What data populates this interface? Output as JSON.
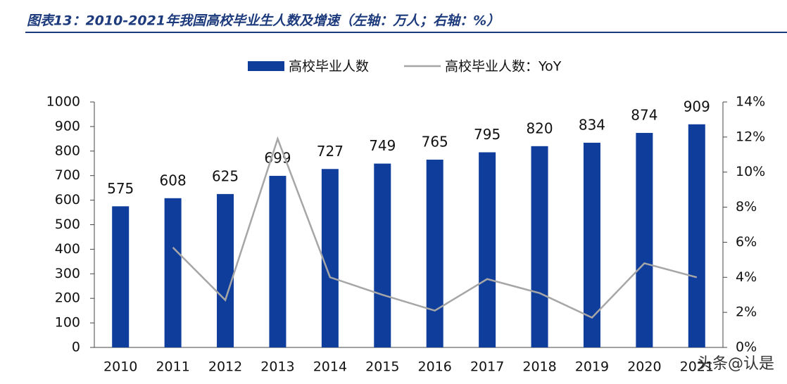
{
  "chart_data": {
    "type": "bar-line",
    "title": "图表13：2010-2021年我国高校毕业生人数及增速（左轴：万人；右轴：%）",
    "categories": [
      "2010",
      "2011",
      "2012",
      "2013",
      "2014",
      "2015",
      "2016",
      "2017",
      "2018",
      "2019",
      "2020",
      "2021"
    ],
    "series": [
      {
        "name": "高校毕业人数",
        "type": "bar",
        "color": "#0f3d9c",
        "values": [
          575,
          608,
          625,
          699,
          727,
          749,
          765,
          795,
          820,
          834,
          874,
          909
        ]
      },
      {
        "name": "高校毕业人数：YoY",
        "type": "line",
        "axis": "y2",
        "color": "#a6a6a6",
        "values": [
          null,
          5.7,
          2.7,
          11.9,
          4.0,
          3.0,
          2.1,
          3.9,
          3.1,
          1.7,
          4.8,
          4.0
        ]
      }
    ],
    "ylim": [
      0,
      1000
    ],
    "yticks": [
      0,
      100,
      200,
      300,
      400,
      500,
      600,
      700,
      800,
      900,
      1000
    ],
    "y2lim": [
      0,
      14
    ],
    "y2ticks": [
      {
        "value": 0,
        "label": "0%"
      },
      {
        "value": 2,
        "label": "2%"
      },
      {
        "value": 4,
        "label": "4%"
      },
      {
        "value": 6,
        "label": "6%"
      },
      {
        "value": 8,
        "label": "8%"
      },
      {
        "value": 10,
        "label": "10%"
      },
      {
        "value": 12,
        "label": "12%"
      },
      {
        "value": 14,
        "label": "14%"
      }
    ],
    "watermark": "头条@认是"
  }
}
